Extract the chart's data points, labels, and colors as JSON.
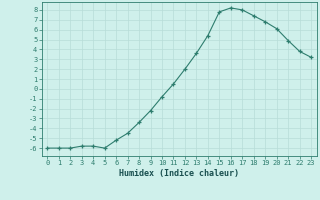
{
  "x": [
    0,
    1,
    2,
    3,
    4,
    5,
    6,
    7,
    8,
    9,
    10,
    11,
    12,
    13,
    14,
    15,
    16,
    17,
    18,
    19,
    20,
    21,
    22,
    23
  ],
  "y": [
    -6.0,
    -6.0,
    -6.0,
    -5.8,
    -5.8,
    -6.0,
    -5.2,
    -4.5,
    -3.4,
    -2.2,
    -0.8,
    0.5,
    2.0,
    3.6,
    5.4,
    7.8,
    8.2,
    8.0,
    7.4,
    6.8,
    6.1,
    4.9,
    3.8,
    3.2
  ],
  "xlabel": "Humidex (Indice chaleur)",
  "xlim": [
    -0.5,
    23.5
  ],
  "ylim": [
    -6.8,
    8.8
  ],
  "yticks": [
    8,
    7,
    6,
    5,
    4,
    3,
    2,
    1,
    0,
    -1,
    -2,
    -3,
    -4,
    -5,
    -6
  ],
  "xtick_labels": [
    "0",
    "1",
    "2",
    "3",
    "4",
    "5",
    "6",
    "7",
    "8",
    "9",
    "10",
    "11",
    "12",
    "13",
    "14",
    "15",
    "16",
    "17",
    "18",
    "19",
    "20",
    "21",
    "22",
    "23"
  ],
  "line_color": "#2e7d6e",
  "bg_color": "#cff0eb",
  "grid_color": "#b8ddd8"
}
